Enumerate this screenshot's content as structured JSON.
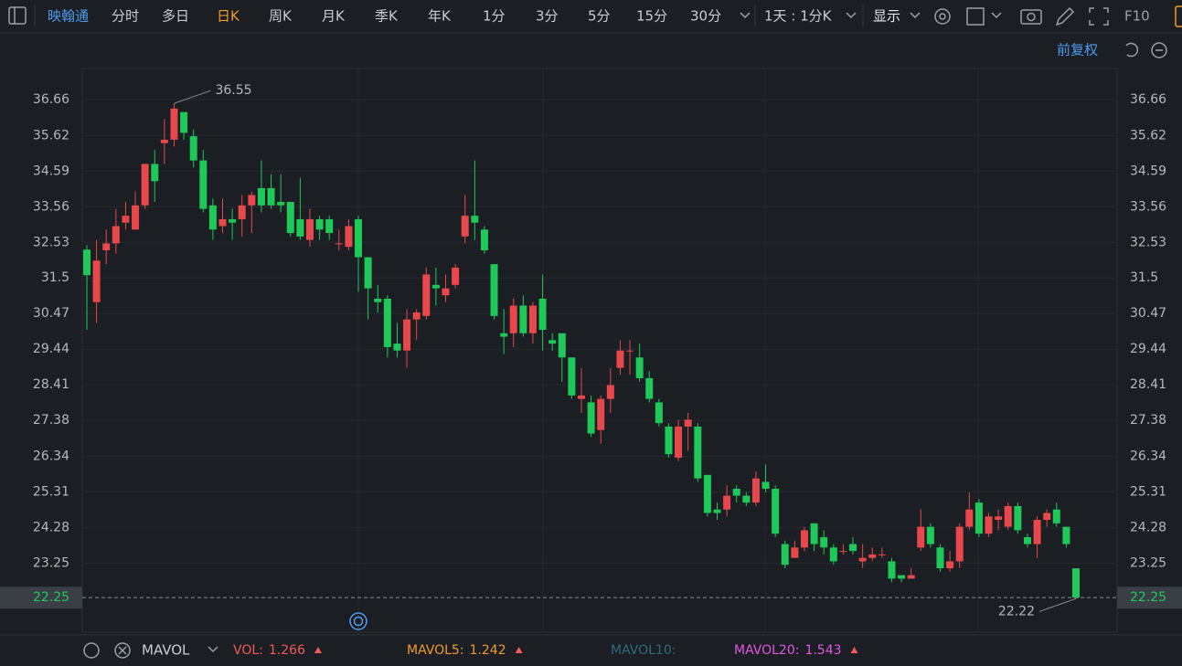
{
  "toolbar": {
    "stock": "映翰通",
    "tabs": [
      "分时",
      "多日",
      "日K",
      "周K",
      "月K",
      "季K",
      "年K",
      "1分",
      "3分",
      "5分",
      "15分",
      "30分"
    ],
    "active_tab": 2,
    "period": "1天 : 1分K",
    "display": "显示",
    "f10": "F10",
    "adjust": "前复权"
  },
  "chart_data": {
    "type": "candlestick",
    "up_color": "#e8474c",
    "down_color": "#1ec95a",
    "grid": true,
    "ylim": [
      21.25,
      37.56
    ],
    "yticks": [
      36.66,
      35.62,
      34.59,
      33.56,
      32.53,
      31.5,
      30.47,
      29.44,
      28.41,
      27.38,
      26.34,
      25.31,
      24.28,
      23.25
    ],
    "last_price": 22.25,
    "max_label": 36.55,
    "min_label": 22.22,
    "open": [
      32.32,
      30.8,
      32.3,
      32.5,
      33.1,
      32.9,
      33.6,
      34.8,
      35.4,
      35.5,
      36.3,
      35.6,
      34.9,
      33.6,
      33.0,
      33.2,
      33.2,
      33.6,
      34.1,
      34.1,
      33.7,
      33.7,
      33.2,
      32.6,
      33.2,
      33.2,
      32.5,
      32.4,
      33.2,
      32.1,
      30.9,
      30.9,
      29.6,
      29.4,
      30.3,
      30.4,
      31.3,
      31.0,
      31.3,
      32.7,
      33.3,
      32.9,
      31.9,
      29.9,
      29.9,
      30.7,
      29.9,
      30.9,
      29.7,
      29.9,
      29.2,
      28.0,
      27.9,
      27.1,
      28.0,
      28.9,
      29.4,
      29.2,
      28.6,
      27.9,
      27.2,
      26.3,
      27.2,
      27.2,
      25.8,
      24.8,
      24.8,
      25.4,
      25.2,
      25.0,
      25.6,
      25.4,
      23.8,
      23.4,
      23.7,
      24.4,
      24.0,
      23.7,
      23.6,
      23.8,
      23.3,
      23.4,
      23.5,
      23.3,
      22.9,
      22.8,
      23.7,
      24.3,
      23.7,
      23.1,
      23.3,
      24.3,
      25.0,
      24.1,
      24.5,
      24.3,
      24.9,
      24.0,
      23.8,
      24.5,
      24.8,
      24.3,
      23.1
    ],
    "high": [
      32.45,
      32.6,
      32.9,
      33.5,
      33.7,
      34.0,
      34.8,
      35.2,
      36.1,
      36.55,
      36.3,
      35.8,
      35.2,
      33.8,
      33.8,
      33.5,
      33.9,
      34.0,
      34.9,
      34.5,
      34.5,
      33.7,
      34.4,
      33.5,
      33.3,
      33.3,
      32.9,
      33.2,
      33.3,
      32.1,
      31.3,
      31.0,
      30.2,
      30.6,
      30.6,
      31.8,
      31.8,
      31.6,
      31.9,
      33.9,
      34.9,
      33.0,
      31.9,
      30.6,
      30.9,
      31.0,
      30.8,
      31.6,
      29.9,
      29.9,
      29.2,
      28.9,
      28.1,
      28.1,
      28.9,
      29.7,
      29.7,
      29.6,
      28.8,
      28.0,
      27.3,
      27.4,
      27.6,
      27.3,
      25.8,
      25.0,
      25.5,
      25.5,
      25.3,
      25.9,
      26.1,
      25.5,
      23.9,
      23.9,
      24.3,
      24.4,
      24.2,
      23.8,
      23.8,
      24.0,
      23.8,
      23.7,
      23.7,
      23.4,
      22.9,
      23.1,
      24.8,
      24.4,
      23.8,
      23.6,
      24.4,
      25.3,
      25.1,
      24.7,
      24.8,
      25.0,
      25.0,
      24.1,
      24.6,
      24.8,
      25.0,
      24.3,
      23.1
    ],
    "low": [
      30.0,
      30.2,
      31.9,
      32.2,
      32.9,
      32.9,
      33.5,
      33.7,
      34.8,
      35.3,
      35.5,
      34.7,
      33.4,
      32.6,
      32.8,
      32.6,
      32.7,
      32.8,
      33.4,
      33.5,
      33.4,
      32.7,
      32.6,
      32.4,
      32.6,
      32.6,
      32.3,
      32.3,
      31.1,
      30.3,
      30.5,
      29.2,
      29.2,
      28.9,
      29.7,
      30.3,
      30.7,
      30.8,
      31.2,
      32.5,
      32.6,
      32.2,
      30.3,
      29.3,
      29.5,
      29.8,
      29.6,
      29.4,
      29.4,
      28.5,
      28.0,
      27.6,
      26.9,
      26.7,
      27.6,
      28.7,
      28.7,
      28.5,
      27.9,
      27.2,
      26.3,
      26.2,
      26.5,
      25.6,
      24.6,
      24.5,
      24.6,
      25.0,
      24.9,
      24.9,
      25.3,
      24.0,
      23.1,
      23.4,
      23.6,
      23.6,
      23.5,
      23.2,
      23.5,
      23.5,
      23.1,
      23.3,
      23.4,
      22.7,
      22.7,
      22.8,
      23.6,
      23.7,
      23.0,
      23.0,
      23.1,
      24.2,
      24.0,
      24.0,
      24.2,
      24.2,
      24.1,
      23.7,
      23.4,
      24.3,
      24.3,
      23.7,
      22.22
    ],
    "close": [
      31.58,
      32.0,
      32.5,
      33.0,
      33.3,
      33.6,
      34.8,
      34.3,
      35.5,
      36.4,
      35.7,
      34.9,
      33.5,
      32.9,
      33.2,
      33.1,
      33.6,
      33.9,
      33.6,
      33.6,
      33.6,
      32.8,
      32.7,
      33.2,
      32.9,
      32.8,
      32.5,
      33.0,
      32.1,
      31.2,
      30.8,
      29.5,
      29.4,
      30.3,
      30.5,
      31.6,
      31.2,
      31.2,
      31.8,
      33.3,
      33.1,
      32.3,
      30.4,
      29.8,
      30.7,
      29.9,
      30.7,
      30.0,
      29.6,
      29.2,
      28.1,
      28.1,
      27.0,
      28.0,
      28.4,
      29.4,
      29.4,
      28.6,
      28.0,
      27.3,
      26.4,
      27.2,
      27.4,
      25.7,
      24.7,
      24.7,
      25.2,
      25.2,
      25.0,
      25.7,
      25.4,
      24.1,
      23.2,
      23.7,
      24.2,
      23.8,
      23.7,
      23.3,
      23.6,
      23.6,
      23.4,
      23.5,
      23.5,
      22.8,
      22.8,
      22.9,
      24.3,
      23.8,
      23.1,
      23.3,
      24.3,
      24.8,
      24.1,
      24.6,
      24.6,
      24.9,
      24.2,
      23.8,
      24.5,
      24.7,
      24.4,
      23.8,
      22.25
    ]
  },
  "indicator_bar": {
    "name": "MAVOL",
    "items": [
      {
        "label": "VOL:",
        "value": 1.266,
        "color": "#f25a5a"
      },
      {
        "label": "MAVOL5:",
        "value": 1.242,
        "color": "#f29a30"
      },
      {
        "label": "MAVOL10:",
        "color": "#2e6b7c"
      },
      {
        "label": "MAVOL20:",
        "value": 1.543,
        "color": "#e256e6"
      }
    ]
  }
}
